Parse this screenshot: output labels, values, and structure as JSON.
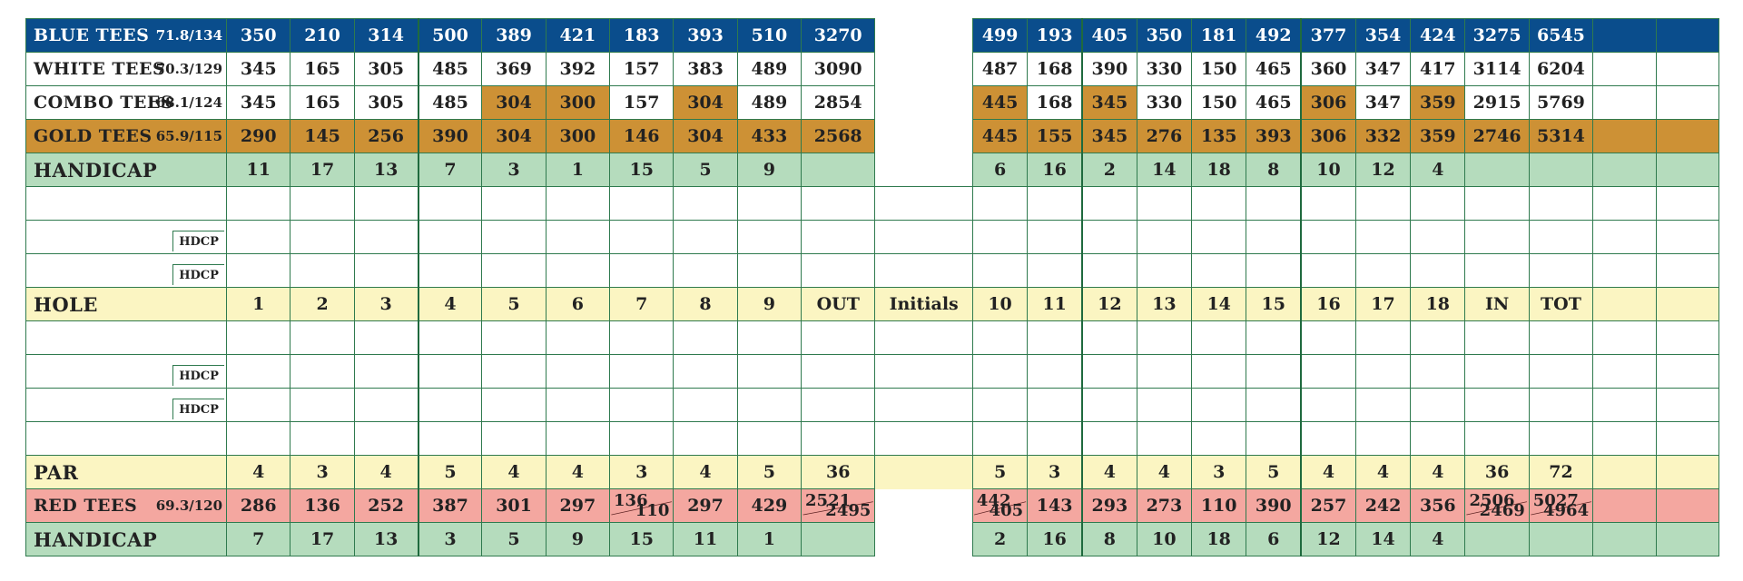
{
  "rows": {
    "blue": {
      "label": "BLUE TEES",
      "rating": "71.8/134",
      "out": [
        "350",
        "210",
        "314",
        "500",
        "389",
        "421",
        "183",
        "393",
        "510",
        "3270"
      ],
      "in": [
        "499",
        "193",
        "405",
        "350",
        "181",
        "492",
        "377",
        "354",
        "424",
        "3275",
        "6545"
      ]
    },
    "white": {
      "label": "WHITE TEES",
      "rating": "70.3/129",
      "out": [
        "345",
        "165",
        "305",
        "485",
        "369",
        "392",
        "157",
        "383",
        "489",
        "3090"
      ],
      "in": [
        "487",
        "168",
        "390",
        "330",
        "150",
        "465",
        "360",
        "347",
        "417",
        "3114",
        "6204"
      ]
    },
    "combo": {
      "label": "COMBO TEES",
      "rating": "68.1/124",
      "out": [
        "345",
        "165",
        "305",
        "485",
        "304",
        "300",
        "157",
        "304",
        "489",
        "2854"
      ],
      "in": [
        "445",
        "168",
        "345",
        "330",
        "150",
        "465",
        "306",
        "347",
        "359",
        "2915",
        "5769"
      ]
    },
    "gold": {
      "label": "GOLD TEES",
      "rating": "65.9/115",
      "out": [
        "290",
        "145",
        "256",
        "390",
        "304",
        "300",
        "146",
        "304",
        "433",
        "2568"
      ],
      "in": [
        "445",
        "155",
        "345",
        "276",
        "135",
        "393",
        "306",
        "332",
        "359",
        "2746",
        "5314"
      ]
    },
    "handicap1": {
      "label": "HANDICAP",
      "out": [
        "11",
        "17",
        "13",
        "7",
        "3",
        "1",
        "15",
        "5",
        "9",
        ""
      ],
      "in": [
        "6",
        "16",
        "2",
        "14",
        "18",
        "8",
        "10",
        "12",
        "4",
        "",
        ""
      ]
    },
    "hole": {
      "label": "HOLE",
      "out": [
        "1",
        "2",
        "3",
        "4",
        "5",
        "6",
        "7",
        "8",
        "9",
        "OUT"
      ],
      "initials": "Initials",
      "in": [
        "10",
        "11",
        "12",
        "13",
        "14",
        "15",
        "16",
        "17",
        "18",
        "IN",
        "TOT"
      ]
    },
    "par": {
      "label": "PAR",
      "out": [
        "4",
        "3",
        "4",
        "5",
        "4",
        "4",
        "3",
        "4",
        "5",
        "36"
      ],
      "in": [
        "5",
        "3",
        "4",
        "4",
        "3",
        "5",
        "4",
        "4",
        "4",
        "36",
        "72"
      ]
    },
    "red": {
      "label": "RED TEES",
      "rating": "69.3/120",
      "out": [
        "286",
        "136",
        "252",
        "387",
        "301",
        "297",
        "",
        "297",
        "429",
        ""
      ],
      "in": [
        "",
        "143",
        "293",
        "273",
        "110",
        "390",
        "257",
        "242",
        "356",
        "",
        ""
      ]
    },
    "handicap2": {
      "label": "HANDICAP",
      "out": [
        "7",
        "17",
        "13",
        "3",
        "5",
        "9",
        "15",
        "11",
        "1",
        ""
      ],
      "in": [
        "2",
        "16",
        "8",
        "10",
        "18",
        "6",
        "12",
        "14",
        "4",
        "",
        ""
      ]
    }
  },
  "red_splits": {
    "h7": {
      "a": "136",
      "b": "110"
    },
    "out": {
      "a": "2521",
      "b": "2495"
    },
    "h10": {
      "a": "442",
      "b": "405"
    },
    "in": {
      "a": "2506",
      "b": "2469"
    },
    "tot": {
      "a": "5027",
      "b": "4964"
    }
  },
  "hdcp_tag": "HDCP",
  "colors": {
    "blue": "#0a4d8c",
    "gold": "#cd9135",
    "handicap_green": "#b5dcbd",
    "yellow": "#fbf5c2",
    "red": "#f4a7a0",
    "grid": "#2f7a4e"
  }
}
